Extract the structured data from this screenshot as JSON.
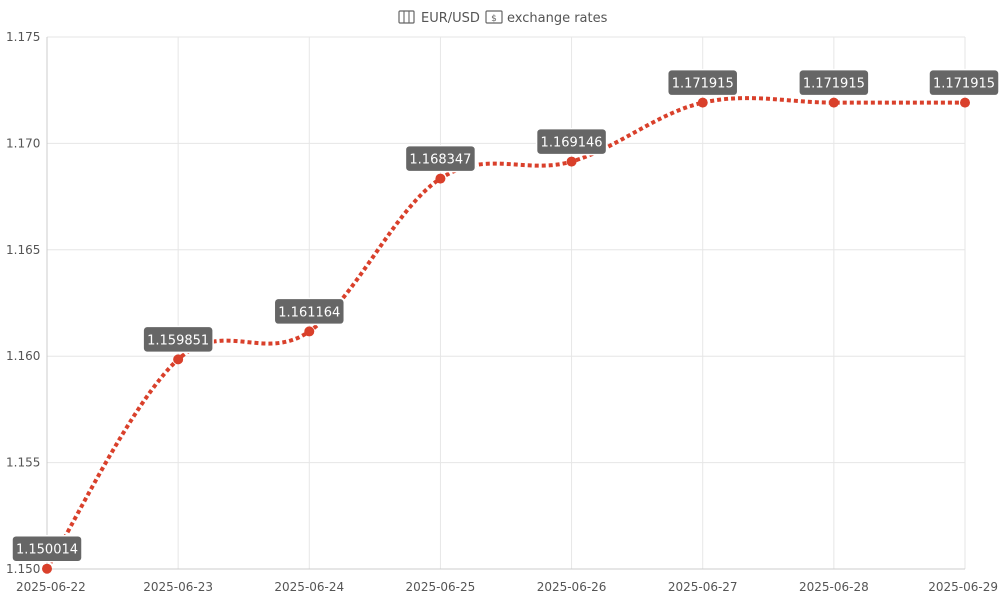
{
  "chart_data": {
    "type": "line",
    "title": {
      "icon_before": "map-icon",
      "text_before": "EUR/USD",
      "icon_after": "banknote-icon",
      "text_after": "exchange rates"
    },
    "xlabel": "",
    "ylabel": "",
    "x": [
      "2025-06-22",
      "2025-06-23",
      "2025-06-24",
      "2025-06-25",
      "2025-06-26",
      "2025-06-27",
      "2025-06-28",
      "2025-06-29"
    ],
    "series": [
      {
        "values": [
          1.150014,
          1.159851,
          1.161164,
          1.168347,
          1.169146,
          1.171915,
          1.171915,
          1.171915
        ],
        "data_labels": [
          "1.150014",
          "1.159851",
          "1.161164",
          "1.168347",
          "1.169146",
          "1.171915",
          "1.171915",
          "1.171915"
        ],
        "color": "#d9402b",
        "line_style": "dotted",
        "smooth": true
      }
    ],
    "ylim": [
      1.15,
      1.175
    ],
    "yticks": [
      "1.150",
      "1.155",
      "1.160",
      "1.165",
      "1.170",
      "1.175"
    ],
    "grid": true,
    "label_box_color": "#666666",
    "grid_color": "#e6e6e6"
  }
}
